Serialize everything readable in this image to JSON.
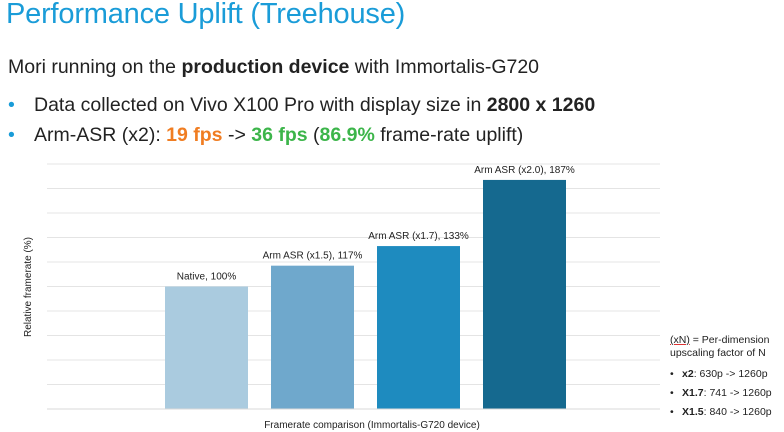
{
  "slide": {
    "title": "Performance Uplift (Treehouse)",
    "subtitle": {
      "pre": "Mori running on the ",
      "bold": "production device",
      "post": " with Immortalis-G720"
    },
    "bullets": [
      {
        "pre": "Data collected on Vivo X100 Pro with display size in ",
        "bold": "2800 x 1260"
      },
      {
        "pre": "Arm-ASR (x2): ",
        "fps_low": "19 fps",
        "arrow": " -> ",
        "fps_high": "36 fps",
        "paren_open": " (",
        "uplift": "86.9%",
        "paren_close": " frame-rate uplift)"
      }
    ],
    "bullet_color": "#1a9cd8",
    "note": {
      "head_xn": "(xN)",
      "head_rest": " = Per-dimension",
      "head_line2": "upscaling factor of N",
      "items": [
        {
          "bold": "x2",
          "rest": ": 630p -> 1260p"
        },
        {
          "bold": "X1.7",
          "rest": ": 741 -> 1260p"
        },
        {
          "bold": "X1.5",
          "rest": ": 840 -> 1260p"
        }
      ]
    }
  },
  "chart_data": {
    "type": "bar",
    "xlabel": "Framerate comparison (Immortalis-G720 device)",
    "ylabel": "Relative framerate (%)",
    "categories": [
      "Native",
      "Arm ASR (x1.5)",
      "Arm ASR (x1.7)",
      "Arm ASR (x2.0)"
    ],
    "values": [
      100,
      117,
      133,
      187
    ],
    "data_labels": [
      "Native, 100%",
      "Arm ASR (x1.5), 117%",
      "Arm ASR (x1.7), 133%",
      "Arm ASR (x2.0), 187%"
    ],
    "colors": [
      "#aacbdf",
      "#6fa8cc",
      "#1e8bbf",
      "#15698f"
    ],
    "ylim": [
      0,
      200
    ],
    "grid": true,
    "gridline_step": 20,
    "legend": "none"
  }
}
